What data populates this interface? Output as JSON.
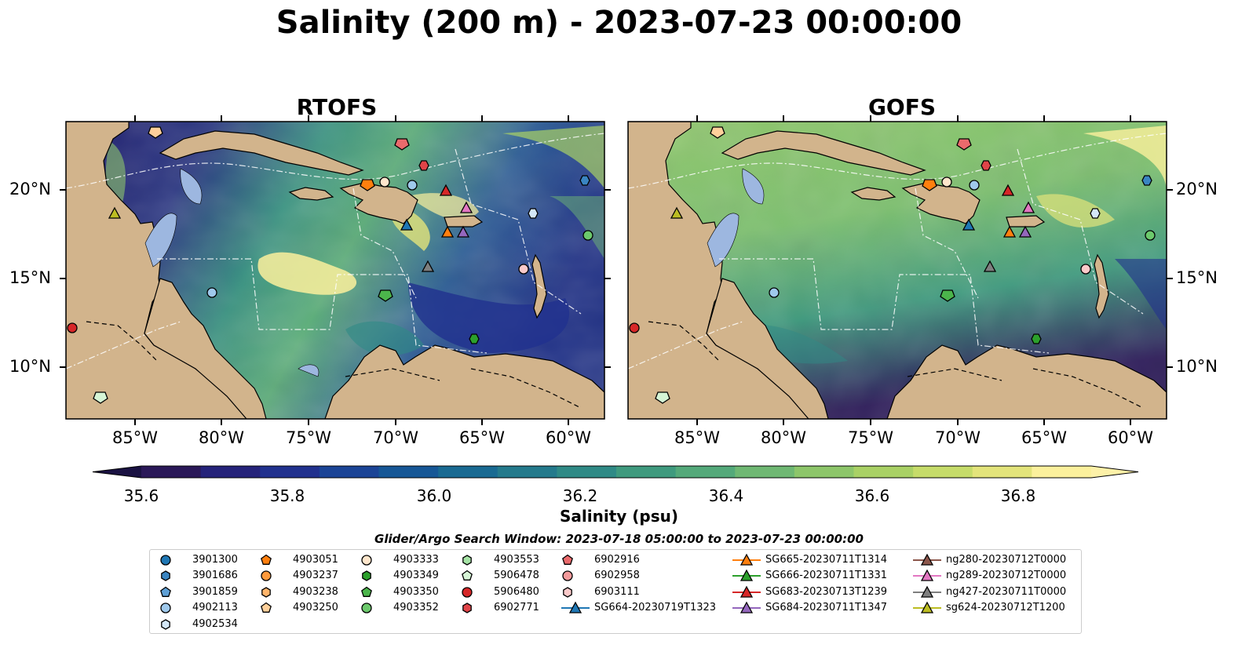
{
  "title": "Salinity (200 m) - 2023-07-23 00:00:00",
  "panels": [
    {
      "name": "RTOFS"
    },
    {
      "name": "GOFS"
    }
  ],
  "latitude_labels": [
    "20°N",
    "15°N",
    "10°N"
  ],
  "longitude_labels": [
    "85°W",
    "80°W",
    "75°W",
    "70°W",
    "65°W",
    "60°W"
  ],
  "colorbar": {
    "label": "Salinity (psu)",
    "tick_labels": [
      "35.6",
      "35.8",
      "36.0",
      "36.2",
      "36.4",
      "36.6",
      "36.8"
    ],
    "colors": [
      "#2a1858",
      "#25237a",
      "#21318e",
      "#1b4496",
      "#165796",
      "#196a92",
      "#247a8c",
      "#2f8a86",
      "#3f9a7e",
      "#54a97a",
      "#6fb873",
      "#8dc66a",
      "#a9d165",
      "#c6dc6a",
      "#e3e47b",
      "#fbf09c"
    ],
    "under_color": "#1a1242",
    "over_color": "#fdf1a8"
  },
  "legend": {
    "title": "Glider/Argo Search Window: 2023-07-18 05:00:00 to 2023-07-23 00:00:00",
    "columns": [
      [
        {
          "label": "3901300",
          "marker": "circle",
          "color": "#1f77b4"
        },
        {
          "label": "3901686",
          "marker": "hexagon",
          "color": "#3a85c2"
        },
        {
          "label": "3901859",
          "marker": "pentagon",
          "color": "#5fa0d6"
        },
        {
          "label": "4902113",
          "marker": "circle",
          "color": "#9fc9ec"
        },
        {
          "label": "4902534",
          "marker": "hexagon",
          "color": "#d4e7f7"
        }
      ],
      [
        {
          "label": "4903051",
          "marker": "pentagon",
          "color": "#ff7f0e"
        },
        {
          "label": "4903237",
          "marker": "circle",
          "color": "#ff9a3c"
        },
        {
          "label": "4903238",
          "marker": "hexagon",
          "color": "#ffb56b"
        },
        {
          "label": "4903250",
          "marker": "pentagon",
          "color": "#ffd09b"
        }
      ],
      [
        {
          "label": "4903333",
          "marker": "circle",
          "color": "#ffe6cc"
        },
        {
          "label": "4903349",
          "marker": "hexagon",
          "color": "#2ca02c"
        },
        {
          "label": "4903350",
          "marker": "pentagon",
          "color": "#4bb54b"
        },
        {
          "label": "4903352",
          "marker": "circle",
          "color": "#6cc96c"
        }
      ],
      [
        {
          "label": "4903553",
          "marker": "hexagon",
          "color": "#a5e3a5"
        },
        {
          "label": "5906478",
          "marker": "pentagon",
          "color": "#d6f5d6"
        },
        {
          "label": "5906480",
          "marker": "circle",
          "color": "#d62728"
        },
        {
          "label": "6902771",
          "marker": "hexagon",
          "color": "#e04448"
        }
      ],
      [
        {
          "label": "6902916",
          "marker": "pentagon",
          "color": "#ea6a6c"
        },
        {
          "label": "6902958",
          "marker": "circle",
          "color": "#f39a9b"
        },
        {
          "label": "6903111",
          "marker": "hexagon",
          "color": "#fbcaca"
        },
        {
          "label": "SG664-20230719T1323",
          "marker": "triangle-line",
          "color": "#1f77b4"
        }
      ],
      [
        {
          "label": "SG665-20230711T1314",
          "marker": "triangle-line",
          "color": "#ff7f0e"
        },
        {
          "label": "SG666-20230711T1331",
          "marker": "triangle-line",
          "color": "#2ca02c"
        },
        {
          "label": "SG683-20230713T1239",
          "marker": "triangle-line",
          "color": "#d62728"
        },
        {
          "label": "SG684-20230711T1347",
          "marker": "triangle-line",
          "color": "#9467bd"
        }
      ],
      [
        {
          "label": "ng280-20230712T0000",
          "marker": "triangle-line",
          "color": "#8c564b"
        },
        {
          "label": "ng289-20230712T0000",
          "marker": "triangle-line",
          "color": "#e377c2"
        },
        {
          "label": "ng427-20230711T0000",
          "marker": "triangle-line",
          "color": "#7f7f7f"
        },
        {
          "label": "sg624-20230712T1200",
          "marker": "triangle-line",
          "color": "#bcbd22"
        }
      ]
    ]
  },
  "map_colors": {
    "land": "#d2b48c",
    "shelf": "#9db7e0"
  }
}
